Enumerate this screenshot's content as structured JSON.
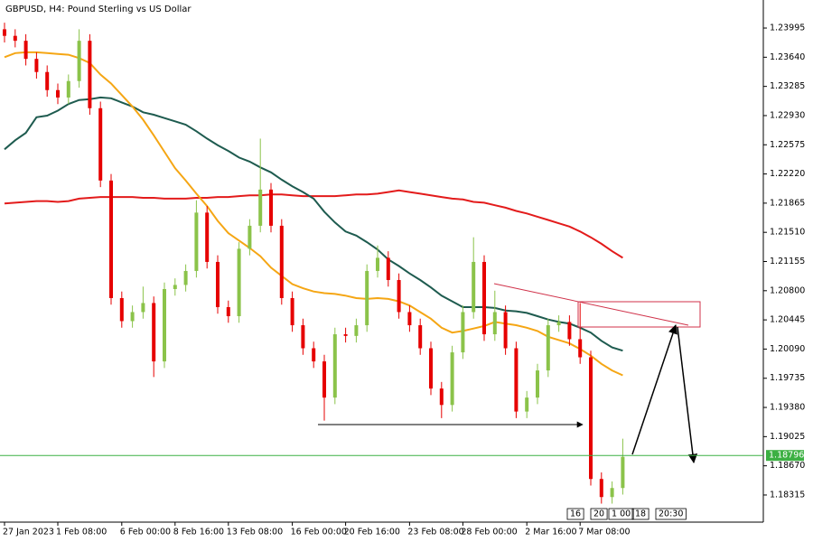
{
  "chart_data": {
    "type": "candlestick",
    "title": "GBPUSD, H4:  Pound Sterling vs US Dollar",
    "up_color": "#8bc34a",
    "down_color": "#e60000",
    "categories": [
      "27 Jan 2023",
      null,
      null,
      null,
      null,
      "1 Feb 08:00",
      null,
      null,
      null,
      null,
      null,
      "6 Feb 00:00",
      null,
      null,
      null,
      null,
      "8 Feb 16:00",
      null,
      null,
      null,
      null,
      "13 Feb 08:00",
      null,
      null,
      null,
      null,
      null,
      "16 Feb 00:00",
      null,
      null,
      null,
      null,
      "20 Feb 16:00",
      null,
      null,
      null,
      null,
      null,
      "23 Feb 08:00",
      null,
      null,
      null,
      null,
      "28 Feb 00:00",
      null,
      null,
      null,
      null,
      null,
      "2 Mar 16:00",
      null,
      null,
      null,
      null,
      "7 Mar 08:00",
      null,
      null,
      null,
      null
    ],
    "open": [
      1.2398,
      1.239,
      1.2384,
      1.2362,
      1.2346,
      1.2324,
      1.2315,
      1.2335,
      1.2384,
      1.2302,
      1.2214,
      1.2071,
      1.2043,
      1.2054,
      1.2065,
      1.1994,
      1.2082,
      1.2087,
      1.2104,
      1.2175,
      1.2115,
      1.206,
      1.2049,
      1.2131,
      1.2159,
      1.2203,
      1.2159,
      1.2071,
      1.2038,
      1.201,
      1.1994,
      1.195,
      1.2027,
      1.2025,
      1.2038,
      1.2104,
      1.212,
      1.2093,
      1.2054,
      1.2038,
      1.201,
      1.1961,
      1.1941,
      1.2005,
      1.2054,
      1.2115,
      1.2027,
      1.2054,
      1.201,
      1.1933,
      1.195,
      1.1983,
      1.2038,
      1.2042,
      1.2021,
      1.1999,
      1.1851,
      1.1829,
      1.184
    ],
    "high": [
      1.2406,
      1.2398,
      1.2392,
      1.237,
      1.2354,
      1.2332,
      1.2343,
      1.2398,
      1.2392,
      1.231,
      1.2222,
      1.2079,
      1.2062,
      1.2085,
      1.2073,
      1.209,
      1.2095,
      1.2112,
      1.219,
      1.2183,
      1.2123,
      1.2068,
      1.2139,
      1.2167,
      1.2265,
      1.2211,
      1.2167,
      1.2079,
      1.2046,
      1.2018,
      1.2002,
      1.2035,
      1.2035,
      1.2046,
      1.2112,
      1.2135,
      1.2128,
      1.2101,
      1.2062,
      1.2046,
      1.2018,
      1.1969,
      1.2013,
      1.2062,
      1.2145,
      1.2123,
      1.208,
      1.2062,
      1.2018,
      1.1958,
      1.1991,
      1.2046,
      1.205,
      1.205,
      1.2065,
      1.2007,
      1.1859,
      1.1848,
      1.19
    ],
    "low": [
      1.2382,
      1.2376,
      1.2354,
      1.2338,
      1.2316,
      1.2307,
      1.2307,
      1.2327,
      1.2294,
      1.2206,
      1.2063,
      1.2035,
      1.2035,
      1.2046,
      1.1975,
      1.1986,
      1.2074,
      1.2079,
      1.2096,
      1.2107,
      1.2052,
      1.2041,
      1.2041,
      1.2123,
      1.2151,
      1.2151,
      1.2063,
      1.203,
      1.2002,
      1.1986,
      1.1922,
      1.1942,
      1.2017,
      1.2017,
      1.203,
      1.2096,
      1.2085,
      1.2046,
      1.203,
      1.2002,
      1.1953,
      1.1925,
      1.1933,
      1.1997,
      1.2046,
      1.2019,
      1.2019,
      1.2002,
      1.1925,
      1.1925,
      1.1942,
      1.1975,
      1.203,
      1.2013,
      1.1991,
      1.1843,
      1.1821,
      1.1821,
      1.1832
    ],
    "close": [
      1.239,
      1.2384,
      1.2362,
      1.2346,
      1.2324,
      1.2315,
      1.2335,
      1.2384,
      1.2302,
      1.2214,
      1.2071,
      1.2043,
      1.2054,
      1.2065,
      1.1994,
      1.2082,
      1.2087,
      1.2104,
      1.2175,
      1.2115,
      1.206,
      1.2049,
      1.2131,
      1.2159,
      1.2203,
      1.2159,
      1.2071,
      1.2038,
      1.201,
      1.1994,
      1.195,
      1.2027,
      1.2025,
      1.2038,
      1.2104,
      1.212,
      1.2093,
      1.2054,
      1.2038,
      1.201,
      1.1961,
      1.1941,
      1.2005,
      1.2054,
      1.2115,
      1.2027,
      1.2054,
      1.201,
      1.1933,
      1.195,
      1.1983,
      1.2038,
      1.2042,
      1.2021,
      1.1999,
      1.1851,
      1.1829,
      1.184,
      1.1878
    ],
    "series": [
      {
        "color": "#e31b1b",
        "values": [
          1.2186,
          1.2187,
          1.2188,
          1.2189,
          1.2189,
          1.2188,
          1.2189,
          1.2192,
          1.2193,
          1.2194,
          1.2194,
          1.2194,
          1.2194,
          1.2193,
          1.2193,
          1.2192,
          1.2192,
          1.2192,
          1.2193,
          1.2193,
          1.2194,
          1.2194,
          1.2195,
          1.2196,
          1.2196,
          1.2197,
          1.2197,
          1.2196,
          1.2195,
          1.2195,
          1.2195,
          1.2195,
          1.2196,
          1.2197,
          1.2197,
          1.2198,
          1.22,
          1.2202,
          1.22,
          1.2198,
          1.2196,
          1.2194,
          1.2192,
          1.2191,
          1.2188,
          1.2187,
          1.2184,
          1.2181,
          1.2177,
          1.2174,
          1.217,
          1.2166,
          1.2162,
          1.2158,
          1.2152,
          1.2145,
          1.2137,
          1.2128,
          1.212
        ]
      },
      {
        "color": "#1e5b4f",
        "values": [
          1.2252,
          1.2263,
          1.2272,
          1.2291,
          1.2293,
          1.2299,
          1.2307,
          1.2312,
          1.2313,
          1.2315,
          1.2314,
          1.2309,
          1.2304,
          1.2297,
          1.2294,
          1.229,
          1.2286,
          1.2282,
          1.2274,
          1.2265,
          1.2257,
          1.225,
          1.2242,
          1.2237,
          1.223,
          1.2224,
          1.2215,
          1.2207,
          1.22,
          1.2192,
          1.2176,
          1.2163,
          1.2152,
          1.2147,
          1.2139,
          1.213,
          1.2118,
          1.211,
          1.2101,
          1.2093,
          1.2084,
          1.2074,
          1.2067,
          1.206,
          1.206,
          1.206,
          1.2059,
          1.2056,
          1.2055,
          1.2053,
          1.2049,
          1.2045,
          1.2042,
          1.204,
          1.2035,
          1.2029,
          1.2019,
          1.2011,
          1.2007
        ]
      },
      {
        "color": "#f5a614",
        "values": [
          1.2364,
          1.2369,
          1.237,
          1.237,
          1.2369,
          1.2368,
          1.2367,
          1.2363,
          1.2357,
          1.2343,
          1.2332,
          1.2318,
          1.2304,
          1.2288,
          1.2269,
          1.2249,
          1.2229,
          1.2214,
          1.2198,
          1.2183,
          1.2165,
          1.215,
          1.2141,
          1.2132,
          1.2122,
          1.2108,
          1.2098,
          1.2088,
          1.2083,
          1.2079,
          1.2077,
          1.2076,
          1.2074,
          1.2071,
          1.207,
          1.2071,
          1.207,
          1.2067,
          1.2062,
          1.2054,
          1.2046,
          1.2035,
          1.2029,
          1.2031,
          1.2034,
          1.2037,
          1.2042,
          1.204,
          1.2038,
          1.2035,
          1.2031,
          1.2024,
          1.202,
          1.2016,
          1.2009,
          1.2001,
          1.1991,
          1.1983,
          1.1977
        ]
      }
    ],
    "last_price": 1.18796,
    "last_price_color": "#3cb043",
    "ylim": [
      1.17985,
      1.24336
    ],
    "yticks": [
      1.23995,
      {
        "value": 1.2364,
        "label": "1.23640"
      },
      1.23285,
      {
        "value": 1.2293,
        "label": "1.22930"
      },
      1.22575,
      {
        "value": 1.2222,
        "label": "1.22220"
      },
      1.21865,
      {
        "value": 1.2151,
        "label": "1.21510"
      },
      1.21155,
      {
        "value": 1.208,
        "label": "1.20800"
      },
      1.20445,
      {
        "value": 1.2009,
        "label": "1.20090"
      },
      1.19735,
      {
        "value": 1.1938,
        "label": "1.19380"
      },
      1.19025,
      {
        "value": 1.1867,
        "label": "1.18670"
      },
      1.18315
    ],
    "time_markers": [
      "16",
      "20",
      "1 00",
      "18",
      "20:30"
    ]
  }
}
